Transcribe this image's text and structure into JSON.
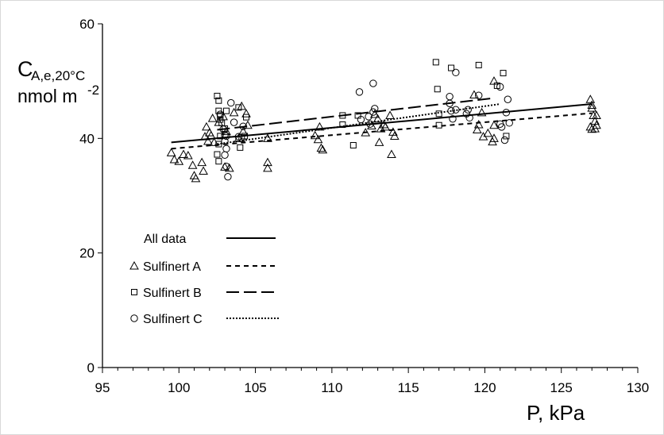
{
  "chart_data": {
    "type": "scatter",
    "x_axis": {
      "label_text": "P, kPa",
      "range": [
        95,
        130
      ],
      "ticks": [
        "95",
        "100",
        "105",
        "110",
        "115",
        "120",
        "125",
        "130"
      ],
      "minor_tick_step": 1
    },
    "y_axis": {
      "label_main": "C",
      "label_sub": "A,e,20°C",
      "label_unit": "nmol m",
      "label_unit_sup": "-2",
      "range": [
        0,
        60
      ],
      "ticks": [
        "0",
        "20",
        "40",
        "60"
      ]
    },
    "grid": false,
    "legend": {
      "placement": "bottom-left",
      "entries": [
        {
          "label": "All data",
          "marker": "none",
          "line": "solid"
        },
        {
          "label": "Sulfinert A",
          "marker": "triangle",
          "line": "short-dash"
        },
        {
          "label": "Sulfinert B",
          "marker": "square",
          "line": "long-dash"
        },
        {
          "label": "Sulfinert C",
          "marker": "circle",
          "line": "dotted"
        }
      ]
    },
    "trendlines": [
      {
        "legend": "All data",
        "style": "solid",
        "x": [
          99.5,
          127
        ],
        "y": [
          39.3,
          46.0
        ]
      },
      {
        "legend": "Sulfinert A",
        "style": "short-dash",
        "x": [
          99.5,
          127
        ],
        "y": [
          38.2,
          44.4
        ]
      },
      {
        "legend": "Sulfinert B",
        "style": "long-dash",
        "x": [
          102.5,
          120.5
        ],
        "y": [
          41.5,
          47.0
        ]
      },
      {
        "legend": "Sulfinert C",
        "style": "dotted",
        "x": [
          102.5,
          121
        ],
        "y": [
          39.0,
          46.0
        ]
      }
    ],
    "series": [
      {
        "legend": "Sulfinert A",
        "marker": "triangle",
        "points": [
          [
            99.5,
            37.5
          ],
          [
            99.7,
            36.3
          ],
          [
            100.0,
            36.0
          ],
          [
            100.3,
            37.2
          ],
          [
            100.6,
            37.0
          ],
          [
            100.9,
            35.3
          ],
          [
            101.0,
            33.5
          ],
          [
            101.1,
            33.0
          ],
          [
            101.5,
            35.8
          ],
          [
            101.6,
            34.3
          ],
          [
            101.7,
            40.3
          ],
          [
            101.8,
            42.0
          ],
          [
            101.9,
            39.5
          ],
          [
            102.0,
            41.0
          ],
          [
            102.1,
            40.5
          ],
          [
            102.2,
            43.5
          ],
          [
            102.3,
            39.3
          ],
          [
            102.6,
            42.8
          ],
          [
            102.9,
            43.8
          ],
          [
            103.0,
            35.0
          ],
          [
            103.1,
            41.2
          ],
          [
            103.3,
            34.8
          ],
          [
            103.6,
            44.5
          ],
          [
            103.9,
            40.0
          ],
          [
            104.1,
            45.6
          ],
          [
            104.2,
            41.2
          ],
          [
            104.4,
            44.3
          ],
          [
            104.5,
            42.3
          ],
          [
            105.8,
            40.0
          ],
          [
            105.8,
            35.8
          ],
          [
            105.8,
            34.8
          ],
          [
            108.9,
            40.5
          ],
          [
            109.1,
            39.8
          ],
          [
            109.2,
            42.0
          ],
          [
            109.3,
            38.3
          ],
          [
            109.4,
            38.0
          ],
          [
            112.2,
            41.0
          ],
          [
            112.6,
            42.2
          ],
          [
            112.8,
            44.2
          ],
          [
            113.0,
            43.4
          ],
          [
            113.1,
            39.3
          ],
          [
            113.2,
            41.7
          ],
          [
            113.4,
            42.4
          ],
          [
            113.5,
            42.0
          ],
          [
            113.8,
            44.0
          ],
          [
            113.9,
            37.2
          ],
          [
            114.0,
            41.1
          ],
          [
            114.1,
            40.4
          ],
          [
            119.3,
            47.6
          ],
          [
            119.5,
            41.5
          ],
          [
            119.6,
            42.4
          ],
          [
            119.8,
            44.5
          ],
          [
            119.9,
            40.3
          ],
          [
            120.2,
            40.9
          ],
          [
            120.5,
            39.4
          ],
          [
            120.6,
            40.0
          ],
          [
            120.6,
            42.3
          ],
          [
            120.6,
            50.0
          ],
          [
            126.9,
            46.8
          ],
          [
            127.0,
            45.8
          ],
          [
            127.0,
            45.3
          ],
          [
            127.1,
            44.0
          ],
          [
            127.2,
            43.0
          ],
          [
            126.9,
            42.0
          ],
          [
            127.0,
            41.6
          ],
          [
            127.2,
            41.7
          ],
          [
            127.3,
            42.3
          ],
          [
            127.3,
            44.0
          ]
        ]
      },
      {
        "legend": "Sulfinert B",
        "marker": "square",
        "points": [
          [
            102.5,
            47.4
          ],
          [
            102.6,
            46.6
          ],
          [
            102.6,
            44.8
          ],
          [
            102.7,
            44.0
          ],
          [
            102.7,
            43.3
          ],
          [
            102.8,
            42.7
          ],
          [
            102.7,
            40.4
          ],
          [
            102.6,
            39.0
          ],
          [
            102.5,
            37.2
          ],
          [
            102.6,
            36.0
          ],
          [
            103.0,
            41.7
          ],
          [
            103.1,
            44.8
          ],
          [
            103.9,
            45.4
          ],
          [
            104.0,
            38.4
          ],
          [
            104.1,
            39.9
          ],
          [
            104.3,
            40.4
          ],
          [
            104.4,
            43.7
          ],
          [
            110.7,
            44.0
          ],
          [
            110.7,
            42.4
          ],
          [
            111.4,
            38.8
          ],
          [
            111.7,
            44.0
          ],
          [
            116.8,
            53.3
          ],
          [
            116.9,
            48.6
          ],
          [
            117.0,
            44.3
          ],
          [
            117.0,
            42.3
          ],
          [
            117.8,
            52.3
          ],
          [
            119.6,
            52.8
          ],
          [
            120.8,
            49.2
          ],
          [
            121.2,
            51.4
          ],
          [
            121.4,
            40.4
          ]
        ]
      },
      {
        "legend": "Sulfinert C",
        "marker": "circle",
        "points": [
          [
            102.7,
            44.2
          ],
          [
            102.9,
            41.6
          ],
          [
            103.0,
            40.6
          ],
          [
            103.0,
            39.5
          ],
          [
            103.1,
            38.2
          ],
          [
            103.0,
            37.1
          ],
          [
            103.1,
            35.1
          ],
          [
            103.2,
            33.3
          ],
          [
            103.1,
            40.4
          ],
          [
            103.4,
            46.2
          ],
          [
            103.6,
            42.8
          ],
          [
            103.9,
            40.3
          ],
          [
            104.2,
            42.1
          ],
          [
            111.8,
            48.1
          ],
          [
            111.9,
            43.3
          ],
          [
            112.4,
            43.8
          ],
          [
            112.5,
            42.5
          ],
          [
            112.7,
            44.6
          ],
          [
            112.7,
            49.6
          ],
          [
            112.8,
            45.2
          ],
          [
            117.7,
            47.3
          ],
          [
            117.7,
            46.1
          ],
          [
            117.8,
            44.8
          ],
          [
            117.9,
            43.4
          ],
          [
            118.1,
            45.0
          ],
          [
            118.1,
            51.5
          ],
          [
            118.8,
            44.3
          ],
          [
            118.9,
            45.0
          ],
          [
            119.0,
            43.6
          ],
          [
            119.6,
            47.5
          ],
          [
            121.0,
            49.0
          ],
          [
            121.0,
            42.5
          ],
          [
            121.1,
            42.0
          ],
          [
            121.3,
            39.7
          ],
          [
            121.4,
            44.5
          ],
          [
            121.5,
            46.8
          ],
          [
            121.6,
            42.7
          ]
        ]
      }
    ]
  }
}
